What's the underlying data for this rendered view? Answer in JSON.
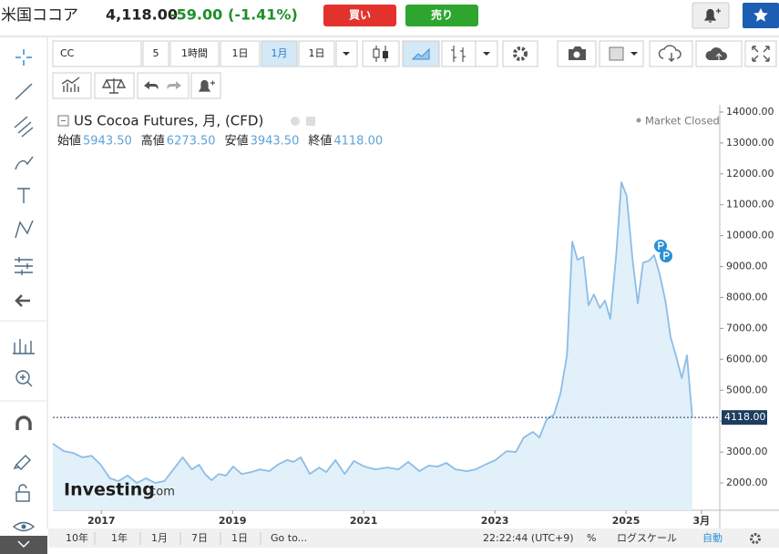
{
  "header": {
    "title": "米国ココア",
    "price": "4,118.00",
    "change": "-59.00",
    "change_pct": "(-1.41%)",
    "buy": "買い",
    "sell": "売り"
  },
  "toolbar": {
    "buttons": [
      "CC",
      "5",
      "1時間",
      "1日",
      "1月",
      "1日"
    ]
  },
  "legend": {
    "title": "US Cocoa Futures, 月, (CFD)",
    "status": "Market Closed",
    "ohlc": [
      {
        "label": "始値",
        "value": "5943.50"
      },
      {
        "label": "高値",
        "value": "6273.50"
      },
      {
        "label": "安値",
        "value": "3943.50"
      },
      {
        "label": "終値",
        "value": "4118.00"
      }
    ]
  },
  "watermark": {
    "brand": "Investing",
    "domain": ".com"
  },
  "chart_data": {
    "type": "area",
    "color": "#8cbde6",
    "fill": "#e2f0fa",
    "x": [
      2016.26,
      2016.43,
      2016.57,
      2016.71,
      2016.85,
      2016.99,
      2017.13,
      2017.26,
      2017.4,
      2017.54,
      2017.68,
      2017.82,
      2017.96,
      2018.1,
      2018.24,
      2018.38,
      2018.49,
      2018.58,
      2018.68,
      2018.79,
      2018.9,
      2019.01,
      2019.14,
      2019.28,
      2019.42,
      2019.56,
      2019.69,
      2019.83,
      2019.93,
      2020.04,
      2020.18,
      2020.32,
      2020.43,
      2020.57,
      2020.71,
      2020.85,
      2021.01,
      2021.18,
      2021.36,
      2021.53,
      2021.68,
      2021.85,
      2021.99,
      2022.13,
      2022.26,
      2022.4,
      2022.57,
      2022.71,
      2022.85,
      2023.01,
      2023.18,
      2023.32,
      2023.44,
      2023.58,
      2023.68,
      2023.79,
      2023.9,
      2024.0,
      2024.1,
      2024.18,
      2024.26,
      2024.35,
      2024.43,
      2024.51,
      2024.6,
      2024.68,
      2024.76,
      2024.85,
      2024.93,
      2025.01,
      2025.1,
      2025.18,
      2025.26,
      2025.35,
      2025.43,
      2025.51,
      2025.6,
      2025.68,
      2025.76,
      2025.85,
      2025.93,
      2026.01
    ],
    "values": [
      3270,
      3030,
      2970,
      2830,
      2880,
      2590,
      2150,
      2060,
      2240,
      2000,
      2150,
      2000,
      2060,
      2440,
      2830,
      2440,
      2590,
      2290,
      2090,
      2290,
      2240,
      2530,
      2290,
      2350,
      2440,
      2380,
      2590,
      2740,
      2680,
      2830,
      2290,
      2500,
      2350,
      2740,
      2290,
      2710,
      2530,
      2440,
      2500,
      2440,
      2680,
      2380,
      2560,
      2530,
      2650,
      2440,
      2380,
      2440,
      2590,
      2740,
      3030,
      3000,
      3470,
      3650,
      3470,
      4060,
      4210,
      4890,
      6130,
      9810,
      9220,
      9310,
      7750,
      8100,
      7660,
      7900,
      7310,
      9370,
      11730,
      11290,
      9220,
      7810,
      9130,
      9190,
      9370,
      8780,
      7900,
      6720,
      6130,
      5390,
      6130,
      4118
    ],
    "xlim": [
      2016.26,
      2026.43
    ],
    "xticks": [
      {
        "value": 2017,
        "label": "2017"
      },
      {
        "value": 2019,
        "label": "2019"
      },
      {
        "value": 2021,
        "label": "2021"
      },
      {
        "value": 2023,
        "label": "2023"
      },
      {
        "value": 2025,
        "label": "2025"
      },
      {
        "value": 2026.15,
        "label": "3月"
      }
    ],
    "ylim": [
      1116,
      14235
    ],
    "yticks": [
      {
        "value": 2000,
        "label": "2000.00"
      },
      {
        "value": 3000,
        "label": "3000.00"
      },
      {
        "value": 4000,
        "label": "4000.00"
      },
      {
        "value": 5000,
        "label": "5000.00"
      },
      {
        "value": 6000,
        "label": "6000.00"
      },
      {
        "value": 7000,
        "label": "7000.00"
      },
      {
        "value": 8000,
        "label": "8000.00"
      },
      {
        "value": 9000,
        "label": "9000.00"
      },
      {
        "value": 10000,
        "label": "10000.00"
      },
      {
        "value": 11000,
        "label": "11000.00"
      },
      {
        "value": 12000,
        "label": "12000.00"
      },
      {
        "value": 13000,
        "label": "13000.00"
      },
      {
        "value": 14000,
        "label": "14000.00"
      }
    ],
    "last_price": {
      "value": 4118,
      "label": "4118.00"
    }
  },
  "footer": {
    "ranges": [
      "10年",
      "1年",
      "1月",
      "7日",
      "1日"
    ],
    "goto": "Go to...",
    "time": "22:22:44 (UTC+9)",
    "percent": "%",
    "log": "ログスケール",
    "auto": "自動"
  }
}
